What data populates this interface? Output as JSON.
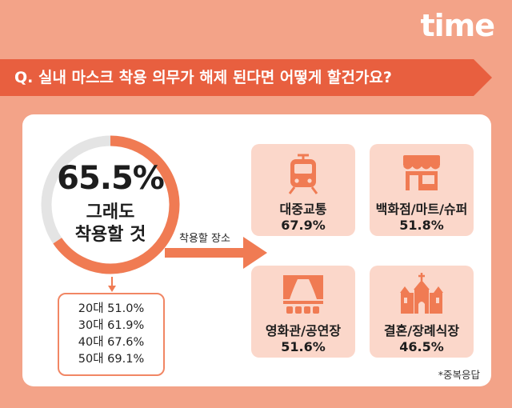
{
  "brand": {
    "logo_text": "time"
  },
  "question": {
    "text": "Q. 실내 마스크 착용 의무가 해제 된다면 어떻게 할건가요?"
  },
  "chart_data": {
    "type": "pie",
    "main": {
      "value": 65.5,
      "value_label": "65.5%",
      "label_line1": "그래도",
      "label_line2": "착용할 것"
    },
    "age_breakdown": [
      {
        "label": "20대 51.0%",
        "age": "20대",
        "value": 51.0
      },
      {
        "label": "30대 61.9%",
        "age": "30대",
        "value": 61.9
      },
      {
        "label": "40대 67.6%",
        "age": "40대",
        "value": 67.6
      },
      {
        "label": "50대 69.1%",
        "age": "50대",
        "value": 69.1
      }
    ],
    "places_title": "착용할 장소",
    "places": [
      {
        "name": "대중교통",
        "value": 67.9,
        "value_label": "67.9%",
        "icon": "train-icon"
      },
      {
        "name": "백화점/마트/슈퍼",
        "value": 51.8,
        "value_label": "51.8%",
        "icon": "store-icon"
      },
      {
        "name": "영화관/공연장",
        "value": 51.6,
        "value_label": "51.6%",
        "icon": "theater-icon"
      },
      {
        "name": "결혼/장례식장",
        "value": 46.5,
        "value_label": "46.5%",
        "icon": "chapel-icon"
      }
    ],
    "footnote": "*중복응답"
  },
  "colors": {
    "accent": "#f07b53",
    "question_bar": "#e85f3f",
    "track": "#e4e4e4",
    "tile": "#fbd7ca",
    "background": "#f3a388"
  }
}
